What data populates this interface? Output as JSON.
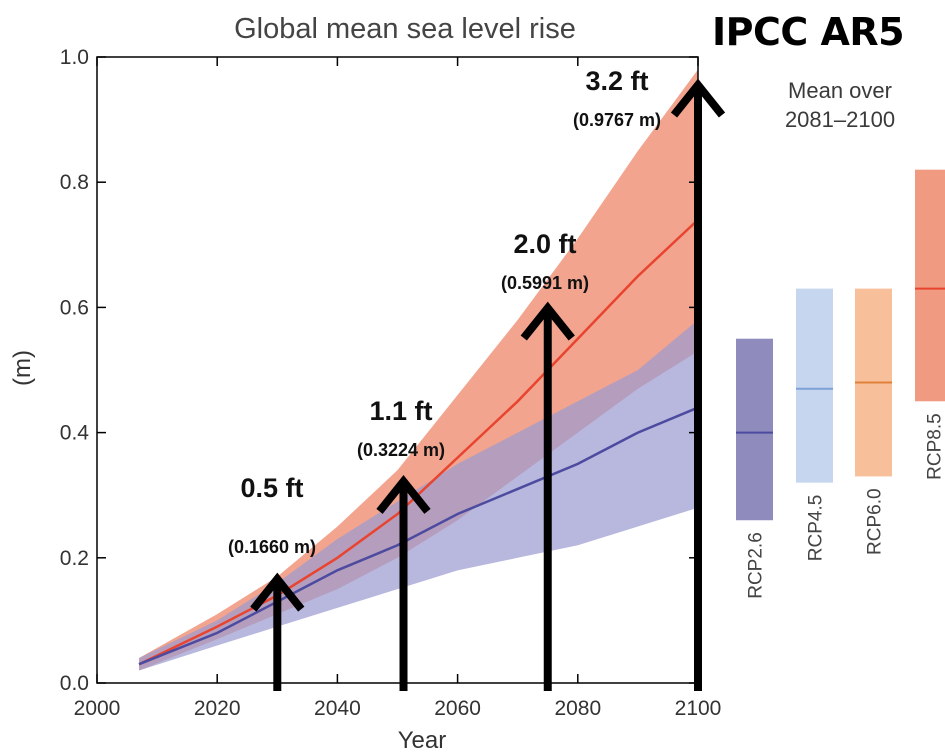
{
  "chart_data": {
    "type": "area",
    "title": "Global mean sea level rise",
    "xlabel": "Year",
    "ylabel": "(m)",
    "xlim": [
      2000,
      2100
    ],
    "ylim": [
      0.0,
      1.0
    ],
    "xticks": [
      "2000",
      "2020",
      "2040",
      "2060",
      "2080",
      "2100"
    ],
    "yticks": [
      "0.0",
      "0.2",
      "0.4",
      "0.6",
      "0.8",
      "1.0"
    ],
    "grid": false,
    "series": [
      {
        "name": "RCP8.5",
        "color": "#e8442f",
        "band_color": "#f19a82",
        "x": [
          2007,
          2020,
          2030,
          2040,
          2050,
          2060,
          2070,
          2080,
          2090,
          2100
        ],
        "mean": [
          0.03,
          0.09,
          0.14,
          0.2,
          0.27,
          0.36,
          0.45,
          0.55,
          0.65,
          0.74
        ],
        "low": [
          0.02,
          0.07,
          0.11,
          0.15,
          0.2,
          0.26,
          0.33,
          0.4,
          0.47,
          0.53
        ],
        "high": [
          0.04,
          0.11,
          0.17,
          0.25,
          0.34,
          0.46,
          0.58,
          0.71,
          0.85,
          0.98
        ]
      },
      {
        "name": "RCP2.6",
        "color": "#4c4ba0",
        "band_color": "#9c9bd0",
        "x": [
          2007,
          2020,
          2030,
          2040,
          2050,
          2060,
          2070,
          2080,
          2090,
          2100
        ],
        "mean": [
          0.03,
          0.08,
          0.13,
          0.18,
          0.22,
          0.27,
          0.31,
          0.35,
          0.4,
          0.44
        ],
        "low": [
          0.02,
          0.06,
          0.09,
          0.12,
          0.15,
          0.18,
          0.2,
          0.22,
          0.25,
          0.28
        ],
        "high": [
          0.04,
          0.1,
          0.16,
          0.23,
          0.29,
          0.35,
          0.4,
          0.45,
          0.5,
          0.58
        ]
      }
    ],
    "annotations": [
      {
        "year": 2030,
        "value": 0.166,
        "ft": "0.5 ft",
        "m": "(0.1660 m)"
      },
      {
        "year": 2051,
        "value": 0.322,
        "ft": "1.1 ft",
        "m": "(0.3224 m)"
      },
      {
        "year": 2075,
        "value": 0.599,
        "ft": "2.0 ft",
        "m": "(0.5991 m)"
      },
      {
        "year": 2100,
        "value": 0.977,
        "ft": "3.2 ft",
        "m": "(0.9767 m)"
      }
    ],
    "side_panel": {
      "title_line1": "Mean over",
      "title_line2": "2081–2100",
      "bars": [
        {
          "label": "RCP2.6",
          "low": 0.26,
          "mean": 0.4,
          "high": 0.55,
          "band": "#8f8bbd",
          "line": "#4c4ba0"
        },
        {
          "label": "RCP4.5",
          "low": 0.32,
          "mean": 0.47,
          "high": 0.63,
          "band": "#c6d6ee",
          "line": "#7ea1d6"
        },
        {
          "label": "RCP6.0",
          "low": 0.33,
          "mean": 0.48,
          "high": 0.63,
          "band": "#f7c09a",
          "line": "#e0803a"
        },
        {
          "label": "RCP8.5",
          "low": 0.45,
          "mean": 0.63,
          "high": 0.82,
          "band": "#f19a82",
          "line": "#e8442f"
        }
      ]
    }
  },
  "header": {
    "badge": "IPCC AR5"
  }
}
